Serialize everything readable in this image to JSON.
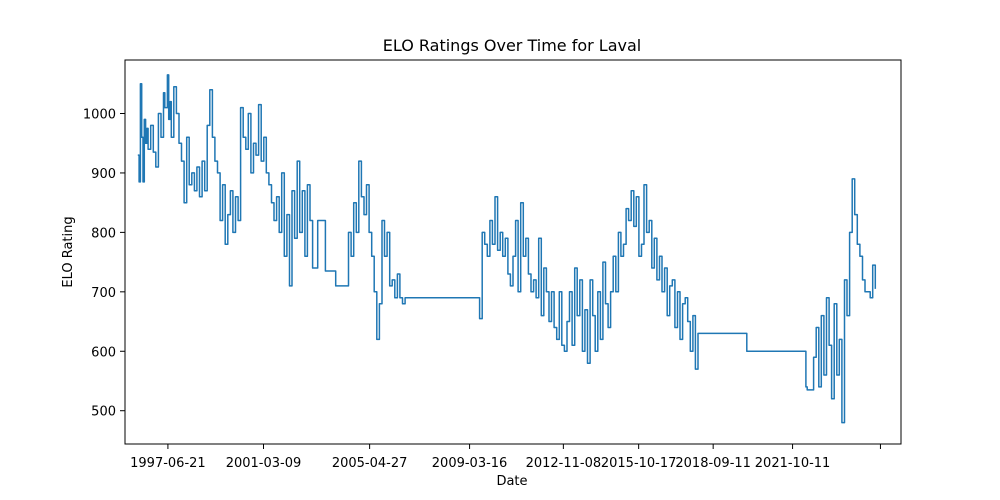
{
  "chart_data": {
    "type": "line",
    "title": "ELO Ratings Over Time for Laval",
    "xlabel": "Date",
    "ylabel": "ELO Rating",
    "x_tick_labels": [
      "1997-06-21",
      "2001-03-09",
      "2005-04-27",
      "2009-03-16",
      "2012-11-08",
      "2015-10-17",
      "2018-09-11",
      "2021-10-11",
      ""
    ],
    "x_tick_years": [
      1997.47,
      2001.19,
      2005.32,
      2009.21,
      2012.86,
      2015.79,
      2018.69,
      2021.78,
      2025.2
    ],
    "y_ticks": [
      500,
      600,
      700,
      800,
      900,
      1000
    ],
    "xlim": [
      1995.8,
      2026.0
    ],
    "ylim": [
      444,
      1090
    ],
    "grid": false,
    "color": "#1f77b4",
    "series": [
      {
        "name": "Laval",
        "x": [
          1996.3,
          1996.35,
          1996.4,
          1996.45,
          1996.5,
          1996.55,
          1996.6,
          1996.65,
          1996.7,
          1996.8,
          1996.9,
          1997.0,
          1997.1,
          1997.2,
          1997.3,
          1997.35,
          1997.45,
          1997.5,
          1997.55,
          1997.6,
          1997.7,
          1997.8,
          1997.9,
          1998.0,
          1998.1,
          1998.2,
          1998.3,
          1998.4,
          1998.5,
          1998.6,
          1998.7,
          1998.8,
          1998.9,
          1999.0,
          1999.1,
          1999.2,
          1999.3,
          1999.4,
          1999.5,
          1999.6,
          1999.7,
          1999.8,
          1999.9,
          2000.0,
          2000.1,
          2000.2,
          2000.3,
          2000.4,
          2000.5,
          2000.6,
          2000.7,
          2000.8,
          2000.9,
          2001.0,
          2001.1,
          2001.2,
          2001.3,
          2001.4,
          2001.5,
          2001.6,
          2001.7,
          2001.8,
          2001.9,
          2002.0,
          2002.1,
          2002.2,
          2002.3,
          2002.4,
          2002.5,
          2002.6,
          2002.7,
          2002.8,
          2002.9,
          2003.0,
          2003.1,
          2003.3,
          2003.6,
          2004.0,
          2004.2,
          2004.4,
          2004.5,
          2004.6,
          2004.7,
          2004.8,
          2004.9,
          2005.0,
          2005.1,
          2005.2,
          2005.3,
          2005.4,
          2005.5,
          2005.6,
          2005.7,
          2005.8,
          2005.9,
          2006.0,
          2006.1,
          2006.2,
          2006.3,
          2006.4,
          2006.5,
          2006.6,
          2006.7,
          2007.0,
          2008.0,
          2009.3,
          2009.35,
          2009.4,
          2009.5,
          2009.6,
          2009.7,
          2009.8,
          2009.9,
          2010.0,
          2010.1,
          2010.2,
          2010.3,
          2010.4,
          2010.5,
          2010.6,
          2010.7,
          2010.8,
          2010.9,
          2011.0,
          2011.1,
          2011.2,
          2011.3,
          2011.4,
          2011.5,
          2011.6,
          2011.7,
          2011.8,
          2011.9,
          2012.0,
          2012.1,
          2012.2,
          2012.3,
          2012.4,
          2012.5,
          2012.6,
          2012.7,
          2012.8,
          2012.9,
          2013.0,
          2013.1,
          2013.2,
          2013.3,
          2013.4,
          2013.5,
          2013.6,
          2013.7,
          2013.8,
          2013.9,
          2014.0,
          2014.1,
          2014.2,
          2014.3,
          2014.4,
          2014.5,
          2014.6,
          2014.7,
          2014.8,
          2014.9,
          2015.0,
          2015.1,
          2015.2,
          2015.3,
          2015.4,
          2015.5,
          2015.6,
          2015.7,
          2015.8,
          2015.9,
          2016.0,
          2016.1,
          2016.2,
          2016.3,
          2016.4,
          2016.5,
          2016.6,
          2016.7,
          2016.8,
          2016.9,
          2017.0,
          2017.1,
          2017.2,
          2017.3,
          2017.4,
          2017.5,
          2017.6,
          2017.7,
          2017.8,
          2017.9,
          2018.0,
          2018.1,
          2020.0,
          2022.3,
          2022.35,
          2022.4,
          2022.5,
          2022.6,
          2022.7,
          2022.8,
          2022.9,
          2023.0,
          2023.1,
          2023.2,
          2023.3,
          2023.4,
          2023.5,
          2023.6,
          2023.7,
          2023.8,
          2023.9,
          2024.0,
          2024.1,
          2024.2,
          2024.3,
          2024.4,
          2024.5,
          2024.6,
          2024.7,
          2024.8,
          2024.9,
          2025.0
        ],
        "y": [
          930,
          885,
          1050,
          960,
          885,
          990,
          950,
          975,
          940,
          980,
          935,
          910,
          1000,
          960,
          1035,
          1010,
          1065,
          990,
          1020,
          960,
          1045,
          1000,
          950,
          920,
          850,
          960,
          880,
          900,
          870,
          910,
          860,
          920,
          870,
          980,
          1040,
          960,
          920,
          900,
          820,
          880,
          780,
          830,
          870,
          800,
          860,
          820,
          1010,
          960,
          940,
          1000,
          900,
          950,
          930,
          1015,
          920,
          960,
          900,
          880,
          850,
          820,
          860,
          800,
          900,
          760,
          830,
          710,
          870,
          790,
          920,
          800,
          870,
          760,
          880,
          820,
          740,
          820,
          735,
          710,
          710,
          710,
          800,
          760,
          850,
          800,
          920,
          860,
          830,
          880,
          800,
          760,
          700,
          620,
          680,
          820,
          760,
          800,
          710,
          720,
          690,
          730,
          690,
          680,
          690,
          690,
          690,
          690,
          690,
          690,
          690,
          655,
          800,
          780,
          760,
          820,
          780,
          860,
          770,
          800,
          760,
          790,
          730,
          710,
          760,
          820,
          700,
          850,
          760,
          790,
          730,
          700,
          720,
          690,
          790,
          660,
          740,
          700,
          650,
          700,
          640,
          620,
          700,
          610,
          600,
          650,
          700,
          610,
          740,
          660,
          720,
          600,
          670,
          580,
          720,
          660,
          600,
          700,
          620,
          750,
          680,
          640,
          700,
          760,
          700,
          800,
          760,
          780,
          840,
          820,
          870,
          810,
          860,
          760,
          780,
          880,
          800,
          820,
          740,
          790,
          720,
          760,
          700,
          740,
          660,
          710,
          720,
          640,
          700,
          620,
          680,
          690,
          650,
          600,
          660,
          570,
          630,
          600,
          540,
          535,
          535,
          535,
          590,
          640,
          540,
          660,
          560,
          690,
          610,
          520,
          680,
          560,
          620,
          480,
          720,
          660,
          800,
          890,
          830,
          780,
          760,
          720,
          700,
          700,
          690,
          745,
          705
        ]
      }
    ]
  }
}
